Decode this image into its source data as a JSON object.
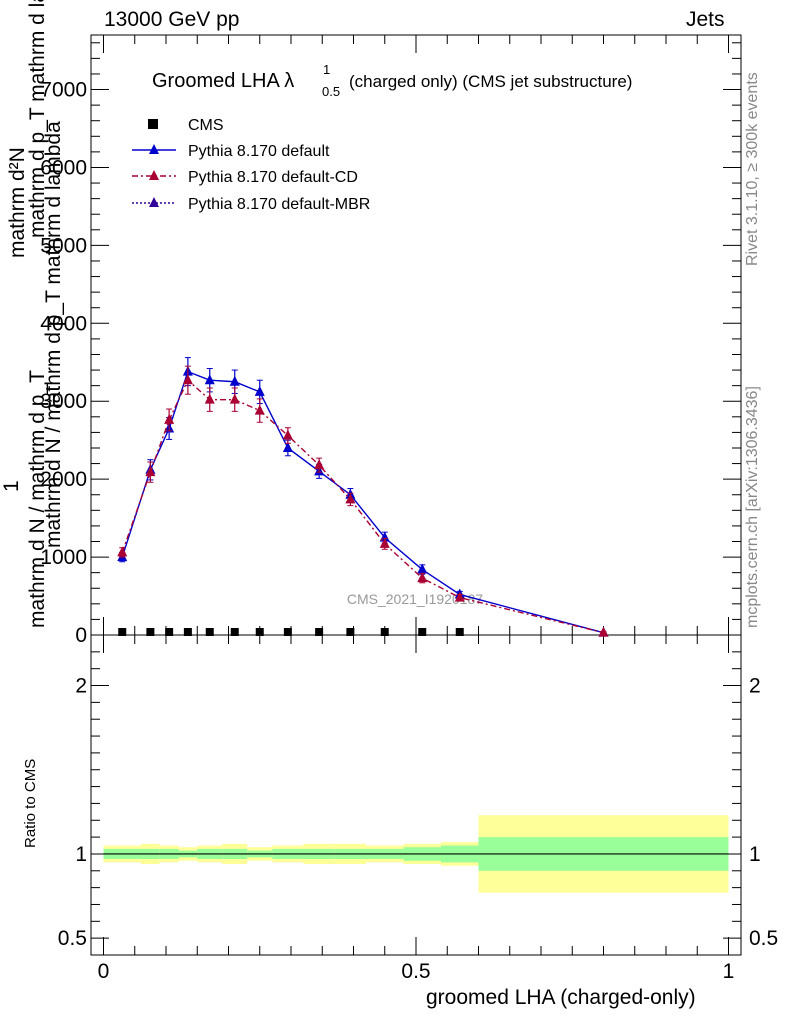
{
  "header": {
    "left": "13000 GeV pp",
    "right": "Jets"
  },
  "side": {
    "rivet": "Rivet 3.1.10, ≥ 300k events",
    "mcplots": "mcplots.cern.ch [arXiv:1306.3436]"
  },
  "chart_data": {
    "type": "line",
    "title": "Groomed LHA λ",
    "title_sup": "1",
    "title_sub": "0.5",
    "title_suffix": " (charged only) (CMS jet substructure)",
    "watermark": "CMS_2021_I1920187",
    "ylabel_top": {
      "prefix": "1",
      "line1": "mathrm d N / mathrm d p_T",
      "line2": "mathrm d N / mathrm d p_T mathrm d lambda",
      "numerator": "mathrm d",
      "numerator_sup": "2",
      "numerator_tail": "N",
      "denominator": "mathrm d p",
      "denominator_sub": "T",
      "denominator_tail": " mathrm d lambda",
      "raw_layers": [
        "mathrm d²N",
        "mathrm d p_T mathrm d lambda",
        "mathrm d N / mathrm d p_T"
      ]
    },
    "ylabel_ratio": "Ratio to CMS",
    "xlabel": "groomed LHA (charged-only)",
    "xlim": [
      -0.02,
      1.02
    ],
    "ylim": [
      0,
      7700
    ],
    "yticks": [
      "0",
      "1000",
      "2000",
      "3000",
      "4000",
      "5000",
      "6000",
      "7000"
    ],
    "xticks": [
      "0",
      "0.5",
      "1"
    ],
    "ratio_ylim": [
      0.4,
      2.3
    ],
    "ratio_yticks": [
      "0.5",
      "1",
      "2"
    ],
    "legend": [
      "CMS",
      "Pythia 8.170 default",
      "Pythia 8.170 default-CD",
      "Pythia 8.170 default-MBR"
    ],
    "cms": {
      "name": "CMS",
      "x": [
        0.03,
        0.075,
        0.105,
        0.135,
        0.17,
        0.21,
        0.25,
        0.295,
        0.345,
        0.395,
        0.45,
        0.51,
        0.57
      ],
      "y": [
        0,
        0,
        0,
        0,
        0,
        0,
        0,
        0,
        0,
        0,
        0,
        0,
        0
      ]
    },
    "series": [
      {
        "name": "Pythia 8.170 default",
        "color": "#0000cc",
        "style": "solid",
        "x": [
          0.03,
          0.075,
          0.105,
          0.135,
          0.17,
          0.21,
          0.25,
          0.295,
          0.345,
          0.395,
          0.45,
          0.51,
          0.57,
          0.8
        ],
        "y": [
          1000,
          2120,
          2650,
          3380,
          3270,
          3250,
          3120,
          2400,
          2100,
          1800,
          1250,
          840,
          520,
          30
        ],
        "err": [
          60,
          130,
          140,
          180,
          150,
          150,
          150,
          100,
          90,
          80,
          70,
          60,
          40,
          10
        ]
      },
      {
        "name": "Pythia 8.170 default-CD",
        "color": "#aa0033",
        "style": "dashdot",
        "x": [
          0.03,
          0.075,
          0.105,
          0.135,
          0.17,
          0.21,
          0.25,
          0.295,
          0.345,
          0.395,
          0.45,
          0.51,
          0.57,
          0.8
        ],
        "y": [
          1060,
          2090,
          2760,
          3270,
          3020,
          3020,
          2880,
          2560,
          2180,
          1740,
          1170,
          730,
          480,
          30
        ],
        "err": [
          60,
          130,
          140,
          180,
          150,
          150,
          150,
          100,
          90,
          80,
          70,
          60,
          40,
          10
        ]
      },
      {
        "name": "Pythia 8.170 default-MBR",
        "color": "#330099",
        "style": "dotted",
        "x": [],
        "y": []
      }
    ],
    "ratio_bands": {
      "edges": [
        0.0,
        0.06,
        0.09,
        0.12,
        0.15,
        0.19,
        0.23,
        0.27,
        0.32,
        0.37,
        0.42,
        0.48,
        0.54,
        0.6,
        1.0
      ],
      "green_half": [
        0.03,
        0.03,
        0.03,
        0.02,
        0.03,
        0.03,
        0.02,
        0.03,
        0.03,
        0.03,
        0.03,
        0.04,
        0.05,
        0.1
      ],
      "yellow_half": [
        0.05,
        0.06,
        0.05,
        0.04,
        0.05,
        0.06,
        0.04,
        0.05,
        0.06,
        0.06,
        0.05,
        0.06,
        0.07,
        0.23
      ]
    },
    "colors": {
      "green": "#99ff99",
      "yellow": "#ffff99"
    }
  }
}
